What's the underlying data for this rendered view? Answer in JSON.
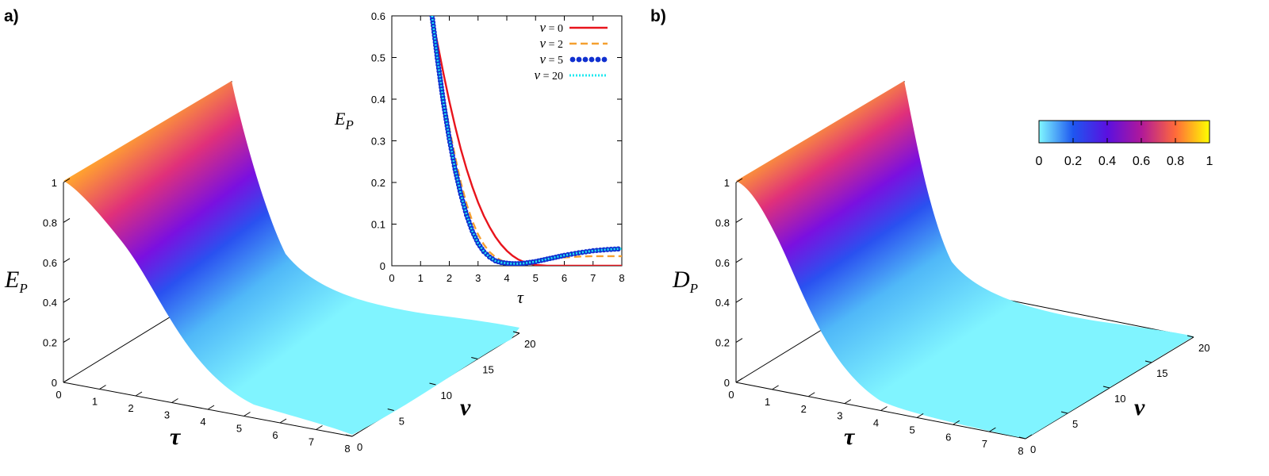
{
  "panel_a": {
    "label": "a)",
    "z_label_main": "E",
    "z_label_sub": "P",
    "x_label": "τ",
    "y_label": "ν",
    "x_ticks": [
      "0",
      "1",
      "2",
      "3",
      "4",
      "5",
      "6",
      "7",
      "8"
    ],
    "y_ticks": [
      "0",
      "5",
      "10",
      "15",
      "20"
    ],
    "z_ticks": [
      "0",
      "0.2",
      "0.4",
      "0.6",
      "0.8",
      "1"
    ]
  },
  "panel_b": {
    "label": "b)",
    "z_label_main": "D",
    "z_label_sub": "P",
    "x_label": "τ",
    "y_label": "ν",
    "x_ticks": [
      "0",
      "1",
      "2",
      "3",
      "4",
      "5",
      "6",
      "7",
      "8"
    ],
    "y_ticks": [
      "0",
      "5",
      "10",
      "15",
      "20"
    ],
    "z_ticks": [
      "0",
      "0.2",
      "0.4",
      "0.6",
      "0.8",
      "1"
    ]
  },
  "colorbar": {
    "ticks": [
      "0",
      "0.2",
      "0.4",
      "0.6",
      "0.8",
      "1"
    ],
    "colors": [
      "#7ff8ff",
      "#1e56f0",
      "#6a10e0",
      "#c01890",
      "#ff6a3a",
      "#ffff00"
    ]
  },
  "inset": {
    "y_label_main": "E",
    "y_label_sub": "P",
    "x_label": "τ",
    "x_ticks": [
      "0",
      "1",
      "2",
      "3",
      "4",
      "5",
      "6",
      "7",
      "8"
    ],
    "y_ticks": [
      "0",
      "0.1",
      "0.2",
      "0.3",
      "0.4",
      "0.5",
      "0.6"
    ],
    "legend": [
      {
        "sym": "ν",
        "text": " = 0",
        "color": "#e8141c",
        "style": "solid"
      },
      {
        "sym": "ν",
        "text": " = 2",
        "color": "#f5a030",
        "style": "dashed"
      },
      {
        "sym": "ν",
        "text": " = 5",
        "color": "#1030d0",
        "style": "dots"
      },
      {
        "sym": "ν",
        "text": " = 20",
        "color": "#20e8f0",
        "style": "dotted"
      }
    ]
  },
  "chart_data": [
    {
      "type": "surface",
      "panel": "a",
      "xlabel": "τ",
      "ylabel": "ν",
      "zlabel": "E_P",
      "xlim": [
        0,
        8
      ],
      "ylim": [
        0,
        20
      ],
      "zlim": [
        0,
        1
      ],
      "profile_tau": [
        0,
        0.5,
        1,
        1.5,
        2,
        2.5,
        3,
        3.5,
        4,
        4.5,
        5,
        5.5,
        6,
        6.5,
        7,
        7.5,
        8
      ],
      "profile_E": [
        1.0,
        0.95,
        0.82,
        0.64,
        0.44,
        0.27,
        0.14,
        0.06,
        0.02,
        0.01,
        0.01,
        0.015,
        0.02,
        0.025,
        0.03,
        0.035,
        0.04
      ]
    },
    {
      "type": "surface",
      "panel": "b",
      "xlabel": "τ",
      "ylabel": "ν",
      "zlabel": "D_P",
      "xlim": [
        0,
        8
      ],
      "ylim": [
        0,
        20
      ],
      "zlim": [
        0,
        1
      ],
      "profile_tau": [
        0,
        0.5,
        1,
        1.5,
        2,
        2.5,
        3,
        3.5,
        4,
        4.5,
        5,
        5.5,
        6,
        6.5,
        7,
        7.5,
        8
      ],
      "profile_D": [
        1.0,
        0.96,
        0.86,
        0.7,
        0.52,
        0.35,
        0.21,
        0.11,
        0.05,
        0.02,
        0.01,
        0.005,
        0.003,
        0.002,
        0.001,
        0.0,
        0.0
      ]
    },
    {
      "type": "line",
      "panel": "inset",
      "xlabel": "τ",
      "ylabel": "E_P",
      "xlim": [
        0,
        8
      ],
      "ylim": [
        0,
        0.6
      ],
      "series": [
        {
          "name": "ν = 0",
          "x": [
            1.4,
            1.6,
            1.8,
            2.0,
            2.2,
            2.4,
            2.6,
            2.8,
            3.0,
            3.2,
            3.4,
            3.6,
            3.8,
            4.0,
            4.2,
            4.4,
            4.6,
            4.8,
            5.0,
            5.2,
            5.4,
            5.6,
            5.8,
            6.0,
            6.5,
            7.0,
            7.5,
            8.0
          ],
          "y": [
            0.6,
            0.53,
            0.46,
            0.395,
            0.335,
            0.28,
            0.232,
            0.19,
            0.152,
            0.12,
            0.093,
            0.07,
            0.051,
            0.036,
            0.024,
            0.015,
            0.009,
            0.005,
            0.002,
            0.001,
            0.0,
            0.0,
            0.0,
            0.0,
            0.0,
            0.0,
            0.0,
            0.0
          ]
        },
        {
          "name": "ν = 2",
          "x": [
            1.4,
            1.6,
            1.8,
            2.0,
            2.2,
            2.4,
            2.6,
            2.8,
            3.0,
            3.2,
            3.4,
            3.6,
            3.8,
            4.0,
            4.2,
            4.4,
            4.6,
            4.8,
            5.0,
            5.2,
            5.4,
            5.6,
            5.8,
            6.0,
            6.5,
            7.0,
            7.5,
            8.0
          ],
          "y": [
            0.6,
            0.5,
            0.41,
            0.33,
            0.262,
            0.2,
            0.148,
            0.107,
            0.075,
            0.051,
            0.033,
            0.021,
            0.013,
            0.008,
            0.006,
            0.006,
            0.007,
            0.009,
            0.011,
            0.013,
            0.015,
            0.017,
            0.019,
            0.02,
            0.022,
            0.023,
            0.023,
            0.023
          ]
        },
        {
          "name": "ν = 5",
          "x": [
            1.4,
            1.6,
            1.8,
            2.0,
            2.2,
            2.4,
            2.6,
            2.8,
            3.0,
            3.2,
            3.4,
            3.6,
            3.8,
            4.0,
            4.2,
            4.4,
            4.6,
            4.8,
            5.0,
            5.2,
            5.4,
            5.6,
            5.8,
            6.0,
            6.5,
            7.0,
            7.5,
            8.0
          ],
          "y": [
            0.6,
            0.49,
            0.39,
            0.305,
            0.232,
            0.172,
            0.122,
            0.083,
            0.054,
            0.034,
            0.021,
            0.012,
            0.008,
            0.006,
            0.005,
            0.005,
            0.006,
            0.008,
            0.01,
            0.013,
            0.016,
            0.019,
            0.022,
            0.025,
            0.031,
            0.036,
            0.039,
            0.041
          ]
        },
        {
          "name": "ν = 20",
          "x": [
            1.4,
            1.6,
            1.8,
            2.0,
            2.2,
            2.4,
            2.6,
            2.8,
            3.0,
            3.2,
            3.4,
            3.6,
            3.8,
            4.0,
            4.2,
            4.4,
            4.6,
            4.8,
            5.0,
            5.2,
            5.4,
            5.6,
            5.8,
            6.0,
            6.5,
            7.0,
            7.5,
            8.0
          ],
          "y": [
            0.6,
            0.49,
            0.39,
            0.305,
            0.232,
            0.172,
            0.122,
            0.083,
            0.054,
            0.034,
            0.021,
            0.012,
            0.008,
            0.006,
            0.005,
            0.005,
            0.006,
            0.008,
            0.01,
            0.013,
            0.016,
            0.019,
            0.022,
            0.025,
            0.031,
            0.036,
            0.039,
            0.041
          ]
        }
      ]
    }
  ]
}
